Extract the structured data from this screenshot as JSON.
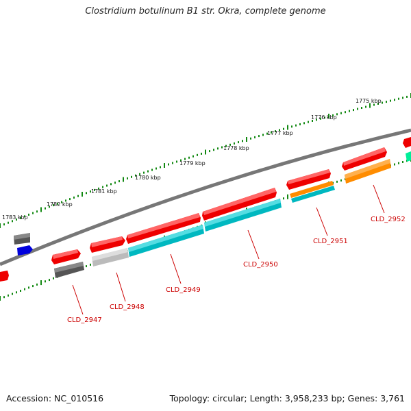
{
  "title": "Clostridium botulinum B1 str. Okra, complete genome",
  "footer": {
    "accession": "Accession: NC_010516",
    "summary": "Topology: circular; Length: 3,958,233 bp; Genes: 3,761"
  },
  "scale_labels": [
    "1775 kbp",
    "1776 kbp",
    "1777 kbp",
    "1778 kbp",
    "1779 kbp",
    "1780 kbp",
    "1781 kbp",
    "1782 kbp",
    "1783 kbp"
  ],
  "gene_labels": [
    "CLD_2947",
    "CLD_2948",
    "CLD_2949",
    "CLD_2950",
    "CLD_2951",
    "CLD_2952"
  ],
  "colors": {
    "backbone": "#777777",
    "gene": "#ee0000",
    "cds": "#00b8c0",
    "pseudo": "#bbbbbb",
    "dark": "#555555",
    "orange": "#ff8c00",
    "blue": "#0000dd",
    "green_ticks": "#118811",
    "label": "#cc0000"
  }
}
